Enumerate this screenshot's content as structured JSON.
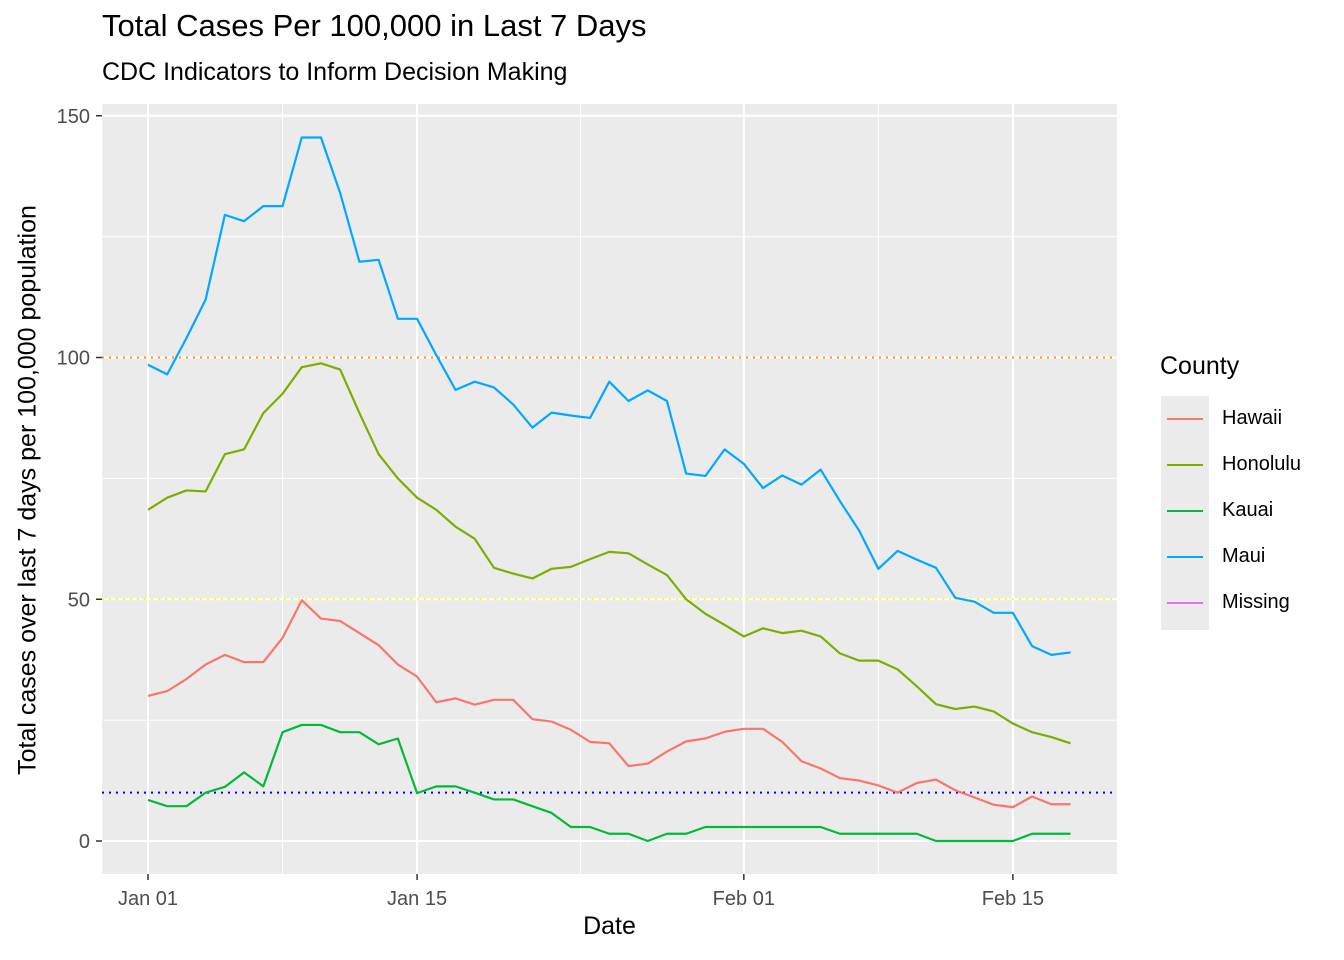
{
  "chart_data": {
    "type": "line",
    "title": "Total Cases Per 100,000 in Last 7 Days",
    "subtitle": "CDC Indicators to Inform Decision Making",
    "xlabel": "Date",
    "ylabel": "Total cases over last 7 days per 100,000 population",
    "x_start": "2021-01-01",
    "x_ticks": [
      "Jan 01",
      "Jan 15",
      "Feb 01",
      "Feb 15"
    ],
    "y_ticks": [
      0,
      50,
      100,
      150
    ],
    "ylim": [
      -7,
      150
    ],
    "legend_title": "County",
    "legend_position": "right",
    "grid": true,
    "reference_lines": [
      {
        "y": 100,
        "color": "#ff9900",
        "style": "dotted"
      },
      {
        "y": 50,
        "color": "#ffff00",
        "style": "dotted"
      },
      {
        "y": 10,
        "color": "#0000ff",
        "style": "dotted"
      }
    ],
    "series": [
      {
        "name": "Hawaii",
        "color": "#F8766D",
        "dates": [
          "2021-01-01",
          "2021-01-02",
          "2021-01-03",
          "2021-01-04",
          "2021-01-05",
          "2021-01-06",
          "2021-01-07",
          "2021-01-08",
          "2021-01-09",
          "2021-01-10",
          "2021-01-11",
          "2021-01-12",
          "2021-01-13",
          "2021-01-14",
          "2021-01-15",
          "2021-01-16",
          "2021-01-17",
          "2021-01-18",
          "2021-01-19",
          "2021-01-20",
          "2021-01-21",
          "2021-01-22",
          "2021-01-23",
          "2021-01-24",
          "2021-01-25",
          "2021-01-26",
          "2021-01-27",
          "2021-01-28",
          "2021-01-29",
          "2021-01-30",
          "2021-01-31",
          "2021-02-01",
          "2021-02-02",
          "2021-02-03",
          "2021-02-04",
          "2021-02-05",
          "2021-02-06",
          "2021-02-07",
          "2021-02-08",
          "2021-02-09",
          "2021-02-10",
          "2021-02-11",
          "2021-02-12",
          "2021-02-13",
          "2021-02-14",
          "2021-02-15",
          "2021-02-16",
          "2021-02-17",
          "2021-02-18"
        ],
        "values": [
          30,
          31,
          33.5,
          36.5,
          38.5,
          37,
          37,
          42,
          49.8,
          46,
          45.5,
          43,
          40.5,
          36.5,
          34,
          28.7,
          29.5,
          28.2,
          29.2,
          29.2,
          25.2,
          24.7,
          23,
          20.5,
          20.2,
          15.5,
          16,
          18.5,
          20.6,
          21.2,
          22.6,
          23.2,
          23.2,
          20.5,
          16.5,
          15,
          13,
          12.5,
          11.5,
          10,
          12,
          12.7,
          10.5,
          9,
          7.5,
          7,
          9.2,
          7.6,
          7.6
        ]
      },
      {
        "name": "Honolulu",
        "color": "#7CAE00",
        "dates": [
          "2021-01-01",
          "2021-01-02",
          "2021-01-03",
          "2021-01-04",
          "2021-01-05",
          "2021-01-06",
          "2021-01-07",
          "2021-01-08",
          "2021-01-09",
          "2021-01-10",
          "2021-01-11",
          "2021-01-12",
          "2021-01-13",
          "2021-01-14",
          "2021-01-15",
          "2021-01-16",
          "2021-01-17",
          "2021-01-18",
          "2021-01-19",
          "2021-01-20",
          "2021-01-21",
          "2021-01-22",
          "2021-01-23",
          "2021-01-24",
          "2021-01-25",
          "2021-01-26",
          "2021-01-27",
          "2021-01-28",
          "2021-01-29",
          "2021-01-30",
          "2021-01-31",
          "2021-02-01",
          "2021-02-02",
          "2021-02-03",
          "2021-02-04",
          "2021-02-05",
          "2021-02-06",
          "2021-02-07",
          "2021-02-08",
          "2021-02-09",
          "2021-02-10",
          "2021-02-11",
          "2021-02-12",
          "2021-02-13",
          "2021-02-14",
          "2021-02-15",
          "2021-02-16",
          "2021-02-17",
          "2021-02-18"
        ],
        "values": [
          68.5,
          71,
          72.5,
          72.3,
          80,
          81,
          88.5,
          92.5,
          98,
          98.8,
          97.5,
          88.5,
          80,
          75,
          71,
          68.5,
          65,
          62.5,
          56.5,
          55.3,
          54.3,
          56.3,
          56.7,
          58.3,
          59.8,
          59.5,
          57.2,
          55,
          50,
          47,
          44.7,
          42.3,
          44,
          43,
          43.5,
          42.3,
          38.8,
          37.3,
          37.3,
          35.5,
          32,
          28.3,
          27.3,
          27.8,
          26.8,
          24.3,
          22.5,
          21.5,
          20.2
        ]
      },
      {
        "name": "Kauai",
        "color": "#00BA38",
        "dates": [
          "2021-01-01",
          "2021-01-02",
          "2021-01-03",
          "2021-01-04",
          "2021-01-05",
          "2021-01-06",
          "2021-01-07",
          "2021-01-08",
          "2021-01-09",
          "2021-01-10",
          "2021-01-11",
          "2021-01-12",
          "2021-01-13",
          "2021-01-14",
          "2021-01-15",
          "2021-01-16",
          "2021-01-17",
          "2021-01-18",
          "2021-01-19",
          "2021-01-20",
          "2021-01-21",
          "2021-01-22",
          "2021-01-23",
          "2021-01-24",
          "2021-01-25",
          "2021-01-26",
          "2021-01-27",
          "2021-01-28",
          "2021-01-29",
          "2021-01-30",
          "2021-01-31",
          "2021-02-01",
          "2021-02-02",
          "2021-02-03",
          "2021-02-04",
          "2021-02-05",
          "2021-02-06",
          "2021-02-07",
          "2021-02-08",
          "2021-02-09",
          "2021-02-10",
          "2021-02-11",
          "2021-02-12",
          "2021-02-13",
          "2021-02-14",
          "2021-02-15",
          "2021-02-16",
          "2021-02-17",
          "2021-02-18"
        ],
        "values": [
          8.5,
          7.2,
          7.2,
          10,
          11.2,
          14.2,
          11.3,
          22.5,
          24,
          24,
          22.5,
          22.5,
          20,
          21.2,
          9.9,
          11.3,
          11.3,
          10,
          8.6,
          8.6,
          7.2,
          5.8,
          2.9,
          2.9,
          1.5,
          1.5,
          0,
          1.5,
          1.5,
          2.9,
          2.9,
          2.9,
          2.9,
          2.9,
          2.9,
          2.9,
          1.5,
          1.5,
          1.5,
          1.5,
          1.5,
          0,
          0,
          0,
          0,
          0,
          1.5,
          1.5,
          1.5
        ]
      },
      {
        "name": "Maui",
        "color": "#00A9FF",
        "dates": [
          "2021-01-01",
          "2021-01-02",
          "2021-01-03",
          "2021-01-04",
          "2021-01-05",
          "2021-01-06",
          "2021-01-07",
          "2021-01-08",
          "2021-01-09",
          "2021-01-10",
          "2021-01-11",
          "2021-01-12",
          "2021-01-13",
          "2021-01-14",
          "2021-01-15",
          "2021-01-16",
          "2021-01-17",
          "2021-01-18",
          "2021-01-19",
          "2021-01-20",
          "2021-01-21",
          "2021-01-22",
          "2021-01-23",
          "2021-01-24",
          "2021-01-25",
          "2021-01-26",
          "2021-01-27",
          "2021-01-28",
          "2021-01-29",
          "2021-01-30",
          "2021-01-31",
          "2021-02-01",
          "2021-02-02",
          "2021-02-03",
          "2021-02-04",
          "2021-02-05",
          "2021-02-06",
          "2021-02-07",
          "2021-02-08",
          "2021-02-09",
          "2021-02-10",
          "2021-02-11",
          "2021-02-12",
          "2021-02-13",
          "2021-02-14",
          "2021-02-15",
          "2021-02-16",
          "2021-02-17",
          "2021-02-18"
        ],
        "values": [
          98.5,
          96.5,
          104,
          112,
          129.5,
          128.2,
          131.3,
          131.3,
          145.5,
          145.5,
          134,
          119.8,
          120.2,
          108,
          108,
          100.5,
          93.3,
          95,
          93.8,
          90.3,
          85.5,
          88.6,
          88,
          87.5,
          95,
          91,
          93.2,
          91,
          76,
          75.5,
          81,
          78,
          73,
          75.6,
          73.7,
          76.8,
          70.3,
          64.2,
          56.3,
          60,
          58.2,
          56.5,
          50.3,
          49.5,
          47.2,
          47.2,
          40.3,
          38.5,
          39
        ]
      },
      {
        "name": "Missing",
        "color": "#E76BF3",
        "dates": [],
        "values": []
      }
    ]
  }
}
